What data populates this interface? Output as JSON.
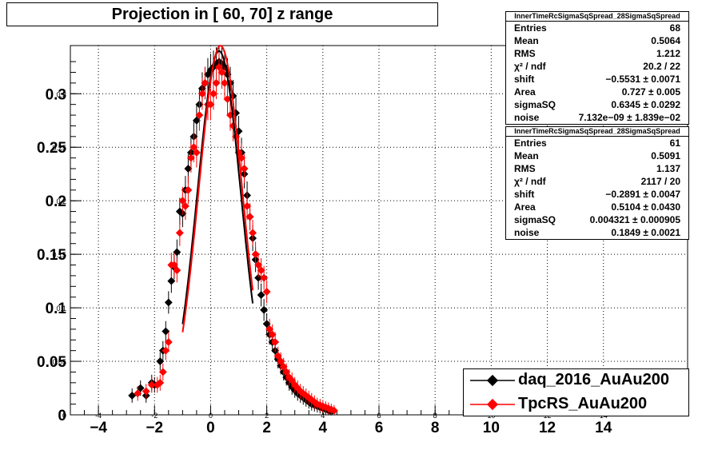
{
  "title": "Projection in [  60,  70] z range",
  "stats": [
    {
      "name": "InnerTimeRcSigmaSqSpread_28SigmaSqSpread",
      "rows": [
        {
          "k": "Entries",
          "v": "68"
        },
        {
          "k": "Mean",
          "v": "0.5064"
        },
        {
          "k": "RMS",
          "v": "1.212"
        },
        {
          "k": "χ² / ndf",
          "v": "20.2 / 22"
        },
        {
          "k": "shift",
          "v": "−0.5531 ± 0.0071"
        },
        {
          "k": "Area",
          "v": "0.727 ± 0.005"
        },
        {
          "k": "sigmaSQ",
          "v": "0.6345 ± 0.0292"
        },
        {
          "k": "noise",
          "v": "7.132e−09 ± 1.839e−02"
        }
      ]
    },
    {
      "name": "InnerTimeRcSigmaSqSpread_28SigmaSqSpread",
      "rows": [
        {
          "k": "Entries",
          "v": "61"
        },
        {
          "k": "Mean",
          "v": "0.5091"
        },
        {
          "k": "RMS",
          "v": "1.137"
        },
        {
          "k": "χ² / ndf",
          "v": "2117 / 20"
        },
        {
          "k": "shift",
          "v": "−0.2891 ± 0.0047"
        },
        {
          "k": "Area",
          "v": "0.5104 ± 0.0430"
        },
        {
          "k": "sigmaSQ",
          "v": "0.004321 ± 0.000905"
        },
        {
          "k": "noise",
          "v": "0.1849 ± 0.0021"
        }
      ]
    }
  ],
  "legend": [
    {
      "label": "daq_2016_AuAu200",
      "color": "#000000"
    },
    {
      "label": "TpcRS_AuAu200",
      "color": "#ff0000"
    }
  ],
  "chart_data": {
    "type": "scatter",
    "title": "Projection in [  60,  70] z range",
    "xlim": [
      -5,
      17
    ],
    "ylim": [
      0,
      0.345
    ],
    "x_ticks": [
      -4,
      -2,
      0,
      2,
      4,
      6,
      8,
      10,
      12,
      14
    ],
    "x_ticks_small": [
      -4,
      -2,
      0,
      2,
      4,
      6,
      8,
      10,
      12,
      14
    ],
    "y_ticks": [
      0,
      0.05,
      0.1,
      0.15,
      0.2,
      0.25,
      0.3
    ],
    "y_tick_labels": [
      "0",
      "0.05",
      "0.1",
      "0.15",
      "0.2",
      "0.25",
      "0.3"
    ],
    "grid": true,
    "legend_position": "bottom-right",
    "series": [
      {
        "name": "daq_2016_AuAu200",
        "color": "#000000",
        "x": [
          -2.8,
          -2.5,
          -2.3,
          -2.1,
          -2.0,
          -1.8,
          -1.7,
          -1.6,
          -1.5,
          -1.4,
          -1.3,
          -1.2,
          -1.1,
          -1.0,
          -0.9,
          -0.8,
          -0.7,
          -0.6,
          -0.5,
          -0.4,
          -0.3,
          -0.2,
          -0.1,
          0.0,
          0.1,
          0.2,
          0.3,
          0.4,
          0.5,
          0.6,
          0.7,
          0.8,
          0.9,
          1.0,
          1.1,
          1.2,
          1.3,
          1.4,
          1.5,
          1.6,
          1.7,
          1.8,
          1.9,
          2.0,
          2.1,
          2.2,
          2.3,
          2.4,
          2.5,
          2.6,
          2.7,
          2.8,
          2.9,
          3.0,
          3.1,
          3.2,
          3.3,
          3.4,
          3.5,
          3.6,
          3.7,
          3.8,
          3.9,
          4.0,
          4.1,
          4.2,
          4.3
        ],
        "y": [
          0.018,
          0.025,
          0.018,
          0.03,
          0.028,
          0.05,
          0.06,
          0.078,
          0.105,
          0.125,
          0.138,
          0.152,
          0.19,
          0.188,
          0.21,
          0.23,
          0.245,
          0.26,
          0.275,
          0.29,
          0.305,
          0.31,
          0.318,
          0.322,
          0.325,
          0.328,
          0.33,
          0.328,
          0.325,
          0.318,
          0.31,
          0.298,
          0.282,
          0.265,
          0.245,
          0.225,
          0.205,
          0.185,
          0.165,
          0.145,
          0.128,
          0.112,
          0.098,
          0.085,
          0.075,
          0.068,
          0.06,
          0.052,
          0.046,
          0.04,
          0.035,
          0.03,
          0.026,
          0.023,
          0.02,
          0.018,
          0.016,
          0.014,
          0.012,
          0.01,
          0.009,
          0.008,
          0.007,
          0.006,
          0.005,
          0.004,
          0.003
        ]
      },
      {
        "name": "TpcRS_AuAu200",
        "color": "#ff0000",
        "x": [
          -2.6,
          -2.3,
          -2.1,
          -1.9,
          -1.8,
          -1.7,
          -1.6,
          -1.5,
          -1.4,
          -1.3,
          -1.2,
          -1.1,
          -1.0,
          -0.9,
          -0.8,
          -0.7,
          -0.6,
          -0.5,
          -0.4,
          -0.3,
          -0.2,
          -0.1,
          0.0,
          0.1,
          0.2,
          0.3,
          0.4,
          0.5,
          0.6,
          0.7,
          0.8,
          0.9,
          1.0,
          1.1,
          1.2,
          1.3,
          1.4,
          1.5,
          1.6,
          1.7,
          1.8,
          1.9,
          2.0,
          2.1,
          2.2,
          2.3,
          2.4,
          2.5,
          2.6,
          2.7,
          2.8,
          2.9,
          3.0,
          3.1,
          3.2,
          3.3,
          3.4,
          3.5,
          3.6,
          3.7,
          3.8,
          3.9,
          4.0,
          4.1,
          4.2,
          4.3,
          4.4
        ],
        "y": [
          0.02,
          0.022,
          0.028,
          0.028,
          0.03,
          0.04,
          0.06,
          0.068,
          0.14,
          0.14,
          0.135,
          0.17,
          0.2,
          0.195,
          0.21,
          0.24,
          0.25,
          0.245,
          0.28,
          0.3,
          0.31,
          0.29,
          0.29,
          0.3,
          0.31,
          0.325,
          0.32,
          0.31,
          0.295,
          0.28,
          0.27,
          0.26,
          0.245,
          0.24,
          0.23,
          0.195,
          0.185,
          0.17,
          0.15,
          0.14,
          0.135,
          0.128,
          0.115,
          0.08,
          0.075,
          0.068,
          0.055,
          0.05,
          0.045,
          0.04,
          0.035,
          0.032,
          0.028,
          0.025,
          0.022,
          0.02,
          0.018,
          0.016,
          0.014,
          0.012,
          0.01,
          0.009,
          0.008,
          0.007,
          0.006,
          0.005,
          0.004
        ]
      },
      {
        "name": "",
        "color": "#000000",
        "kind": "fit-line",
        "x_range": [
          -1.0,
          1.5
        ],
        "y_peak": 0.34,
        "x_peak": 0.3
      },
      {
        "name": "",
        "color": "#ff0000",
        "kind": "fit-line",
        "x_range": [
          -1.0,
          1.5
        ],
        "y_peak": 0.345,
        "x_peak": 0.35
      }
    ]
  }
}
